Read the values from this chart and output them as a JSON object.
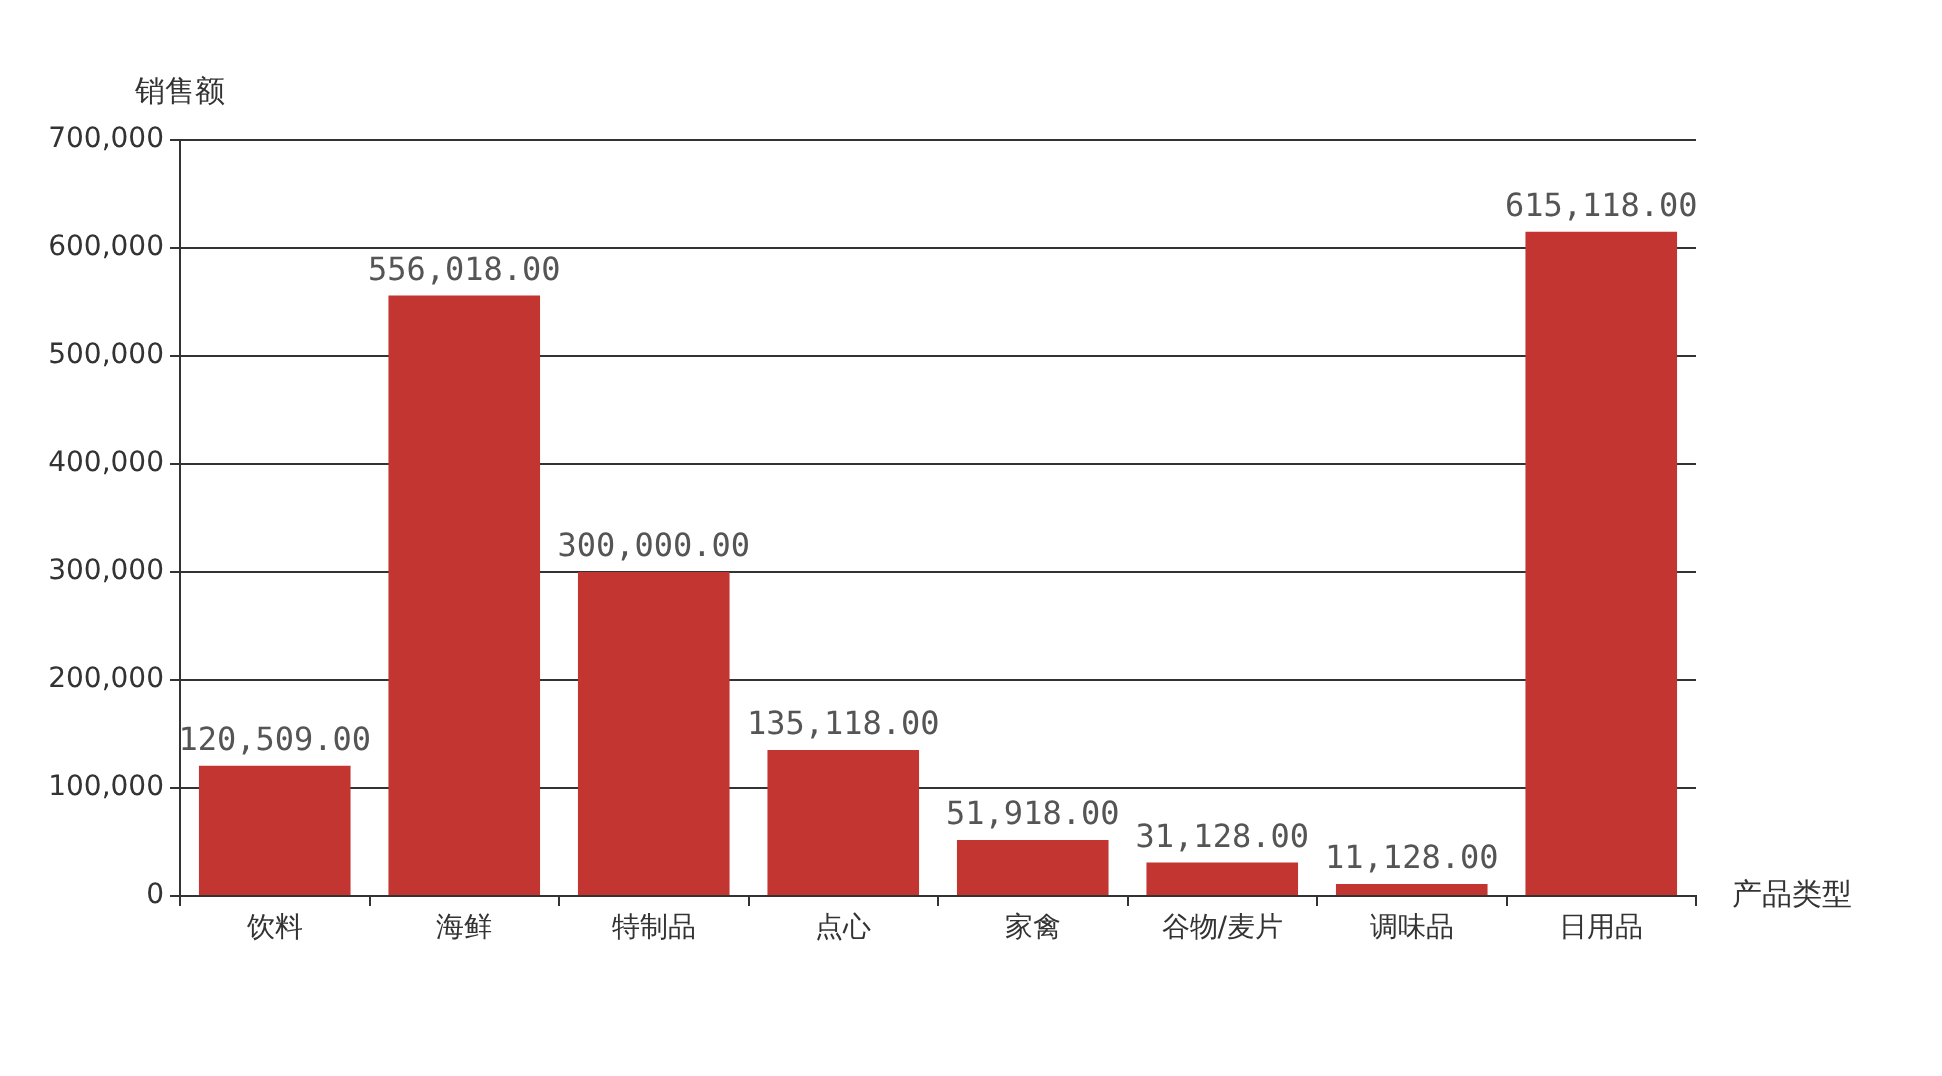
{
  "chart_data": {
    "type": "bar",
    "xlabel": "产品类型",
    "ylabel": "销售额",
    "categories": [
      "饮料",
      "海鲜",
      "特制品",
      "点心",
      "家禽",
      "谷物/麦片",
      "调味品",
      "日用品"
    ],
    "values": [
      120509,
      556018,
      300000,
      135118,
      51918,
      31128,
      11128,
      615118
    ],
    "value_labels": [
      "120,509.00",
      "556,018.00",
      "300,000.00",
      "135,118.00",
      "51,918.00",
      "31,128.00",
      "11,128.00",
      "615,118.00"
    ],
    "color": "#c23531",
    "ylim": [
      0,
      700000
    ],
    "yticks": [
      {
        "value": 0,
        "label": "0"
      },
      {
        "value": 100000,
        "label": "100,000"
      },
      {
        "value": 200000,
        "label": "200,000"
      },
      {
        "value": 300000,
        "label": "300,000"
      },
      {
        "value": 400000,
        "label": "400,000"
      },
      {
        "value": 500000,
        "label": "500,000"
      },
      {
        "value": 600000,
        "label": "600,000"
      },
      {
        "value": 700000,
        "label": "700,000"
      }
    ],
    "grid": "y",
    "legend": false
  }
}
